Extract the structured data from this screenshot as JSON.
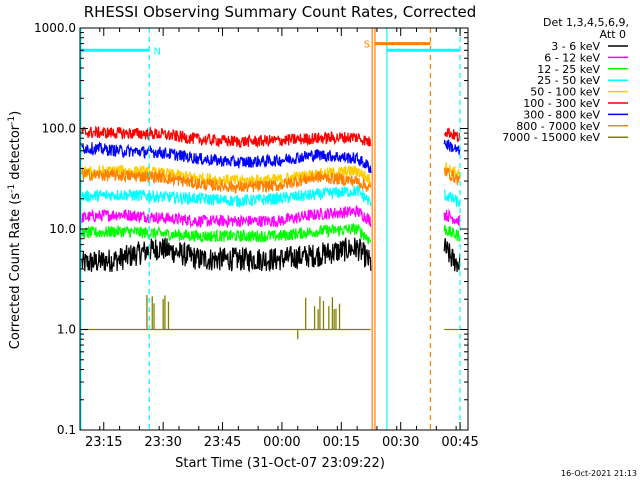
{
  "chart_data": {
    "type": "line",
    "title": "RHESSI Observing Summary Count Rates, Corrected",
    "xlabel": "Start Time (31-Oct-07 23:09:22)",
    "ylabel_main": "Corrected Count Rate (s",
    "ylabel_sup1": "-1",
    "ylabel_mid": " detector",
    "ylabel_sup2": "-1",
    "ylabel_end": ")",
    "yscale": "log",
    "ylim": [
      0.1,
      1000.0
    ],
    "xlim_minutes": [
      0,
      98
    ],
    "y_ticks": [
      "1000.0",
      "100.0",
      "10.0",
      "1.0",
      "0.1"
    ],
    "x_ticks": [
      {
        "label": "23:15",
        "minute": 6
      },
      {
        "label": "23:30",
        "minute": 21
      },
      {
        "label": "23:45",
        "minute": 36
      },
      {
        "label": "00:00",
        "minute": 51
      },
      {
        "label": "00:15",
        "minute": 66
      },
      {
        "label": "00:30",
        "minute": 81
      },
      {
        "label": "00:45",
        "minute": 96
      }
    ],
    "legend": {
      "header1": "Det 1,3,4,5,6,9,",
      "header2": "Att 0",
      "placement": "right"
    },
    "series": [
      {
        "name": "3 - 6 keV",
        "color": "#000000",
        "x": [
          0,
          10,
          20,
          30,
          40,
          50,
          60,
          70,
          73.5,
          92,
          94,
          96
        ],
        "y": [
          4.5,
          5.0,
          6.5,
          5.0,
          5.0,
          5.0,
          5.5,
          6.5,
          4.5,
          6.5,
          5.0,
          4.5
        ]
      },
      {
        "name": "6 - 12 keV",
        "color": "#ff00ff",
        "x": [
          0,
          10,
          20,
          30,
          40,
          50,
          60,
          70,
          73.5,
          92,
          94,
          96
        ],
        "y": [
          13,
          14,
          13,
          12,
          12,
          12,
          14,
          15,
          12,
          14,
          13,
          12
        ]
      },
      {
        "name": "12 - 25 keV",
        "color": "#00ff00",
        "x": [
          0,
          10,
          20,
          30,
          40,
          50,
          60,
          70,
          73.5,
          92,
          94,
          96
        ],
        "y": [
          9,
          9.5,
          9,
          8.5,
          8.5,
          8.5,
          9.5,
          10,
          7.5,
          10,
          9,
          8.5
        ]
      },
      {
        "name": "25 - 50 keV",
        "color": "#00ffff",
        "x": [
          0,
          10,
          20,
          30,
          40,
          50,
          60,
          70,
          73.5,
          92,
          94,
          96
        ],
        "y": [
          21,
          22,
          21,
          20,
          19,
          20,
          22,
          24,
          18,
          22,
          20,
          18
        ]
      },
      {
        "name": "50 - 100 keV",
        "color": "#ffcc00",
        "x": [
          0,
          10,
          20,
          30,
          40,
          50,
          60,
          70,
          73.5,
          92,
          94,
          96
        ],
        "y": [
          36,
          38,
          36,
          32,
          30,
          31,
          35,
          38,
          30,
          42,
          38,
          34
        ]
      },
      {
        "name": "100 - 300 keV",
        "color": "#ff0000",
        "x": [
          0,
          10,
          20,
          30,
          40,
          50,
          60,
          70,
          73.5,
          92,
          94,
          96
        ],
        "y": [
          92,
          90,
          88,
          78,
          74,
          76,
          80,
          82,
          72,
          96,
          88,
          80
        ]
      },
      {
        "name": "300 - 800 keV",
        "color": "#0000ff",
        "x": [
          0,
          10,
          20,
          30,
          40,
          50,
          60,
          70,
          73.5,
          92,
          94,
          96
        ],
        "y": [
          65,
          60,
          58,
          50,
          46,
          48,
          55,
          50,
          40,
          72,
          65,
          58
        ]
      },
      {
        "name": "800 - 7000 keV",
        "color": "#ff8000",
        "x": [
          0,
          10,
          20,
          30,
          40,
          50,
          60,
          70,
          73.5,
          92,
          94,
          96
        ],
        "y": [
          35,
          34,
          33,
          28,
          26,
          27,
          33,
          30,
          25,
          38,
          34,
          30
        ]
      },
      {
        "name": "7000 - 15000 keV",
        "color": "#808000",
        "x": [
          0,
          73.5,
          92,
          96
        ],
        "y": [
          1.0,
          1.0,
          1.0,
          1.0
        ]
      }
    ],
    "flag_bars": [
      {
        "label": "",
        "color": "#00ffff",
        "x_start": 0,
        "x_end": 17.5,
        "y": 600
      },
      {
        "label": "N",
        "color": "#00ffff",
        "x_start": 17.5,
        "x_end": 17.5,
        "y": 600
      },
      {
        "label": "S",
        "color": "#ff8000",
        "x_start": 74.5,
        "x_end": 88.5,
        "y": 700
      },
      {
        "label": "",
        "color": "#00ffff",
        "x_start": 77.5,
        "x_end": 96,
        "y": 600
      }
    ],
    "vertical_lines": [
      {
        "x": 0.2,
        "color": "#00ffff",
        "style": "solid"
      },
      {
        "x": 17.5,
        "color": "#00ffff",
        "style": "dashed"
      },
      {
        "x": 73.8,
        "color": "#ff8000",
        "style": "solid"
      },
      {
        "x": 74.5,
        "color": "#ff8000",
        "style": "solid"
      },
      {
        "x": 77.5,
        "color": "#00ffff",
        "style": "solid"
      },
      {
        "x": 88.5,
        "color": "#ff8000",
        "style": "dashed"
      },
      {
        "x": 96,
        "color": "#00ffff",
        "style": "dashed"
      }
    ],
    "footer_date": "16-Oct-2021 21:13"
  }
}
